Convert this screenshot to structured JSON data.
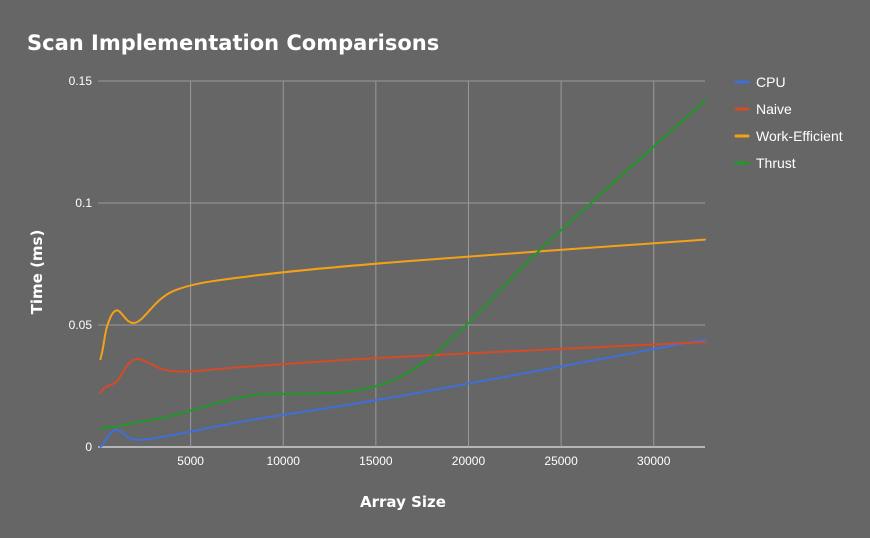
{
  "chart_data": {
    "type": "line",
    "title": "Scan Implementation Comparisons",
    "xlabel": "Array Size",
    "ylabel": "Time (ms)",
    "xlim": [
      0,
      32768
    ],
    "ylim": [
      0,
      0.15
    ],
    "xticks": [
      5000,
      10000,
      15000,
      20000,
      25000,
      30000
    ],
    "xtick_labels": [
      "5000",
      "10000",
      "15000",
      "20000",
      "25000",
      "30000"
    ],
    "yticks": [
      0,
      0.05,
      0.1,
      0.15
    ],
    "ytick_labels": [
      "0",
      "0.05",
      "0.1",
      "0.15"
    ],
    "grid": true,
    "legend_position": "right",
    "series": [
      {
        "name": "CPU",
        "color": "#3f6fd8",
        "x": [
          128,
          256,
          512,
          1024,
          2048,
          4096,
          8192,
          16384,
          32768
        ],
        "y": [
          0.0002,
          0.0008,
          0.004,
          0.007,
          0.003,
          0.005,
          0.011,
          0.021,
          0.044
        ]
      },
      {
        "name": "Naive",
        "color": "#d64a27",
        "x": [
          128,
          256,
          512,
          1024,
          2048,
          4096,
          8192,
          16384,
          32768
        ],
        "y": [
          0.022,
          0.0235,
          0.025,
          0.027,
          0.036,
          0.031,
          0.033,
          0.037,
          0.043
        ]
      },
      {
        "name": "Work-Efficient",
        "color": "#f4a215",
        "x": [
          128,
          256,
          512,
          1024,
          2048,
          4096,
          8192,
          16384,
          32768
        ],
        "y": [
          0.036,
          0.04,
          0.05,
          0.056,
          0.051,
          0.064,
          0.07,
          0.076,
          0.085
        ]
      },
      {
        "name": "Thrust",
        "color": "#1f9a26",
        "x": [
          128,
          256,
          512,
          1024,
          2048,
          4096,
          8192,
          16384,
          24576,
          32768
        ],
        "y": [
          0.0075,
          0.0078,
          0.008,
          0.0085,
          0.01,
          0.013,
          0.021,
          0.029,
          0.086,
          0.142
        ]
      }
    ]
  }
}
